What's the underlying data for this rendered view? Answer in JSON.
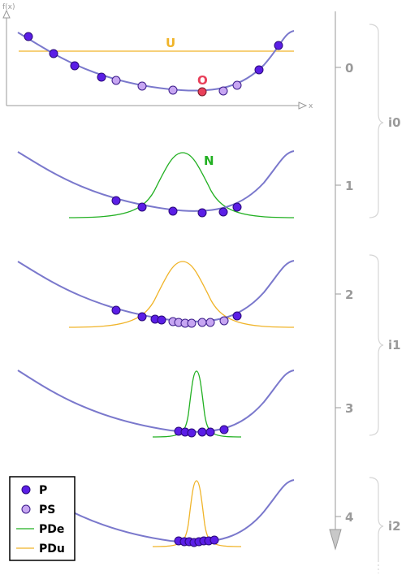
{
  "axis": {
    "y_label": "f(x)",
    "x_label": "x"
  },
  "annotations": {
    "uniform": "U",
    "optimum": "O",
    "normal": "N"
  },
  "timeline": {
    "ticks": [
      "0",
      "1",
      "2",
      "3",
      "4"
    ]
  },
  "iterations": [
    "i0",
    "i1",
    "i2"
  ],
  "legend": {
    "items": [
      {
        "key": "P",
        "label": "P"
      },
      {
        "key": "PS",
        "label": "PS"
      },
      {
        "key": "PDe",
        "label": "PDe"
      },
      {
        "key": "PDu",
        "label": "PDu"
      }
    ]
  },
  "colors": {
    "curve": "#7a78cc",
    "population": "#5b1ee6",
    "selected": "#c7a6f2",
    "normal": "#22b022",
    "uniform": "#f0b429",
    "optimum": "#e8405a",
    "axis": "#9a9a9a"
  }
}
